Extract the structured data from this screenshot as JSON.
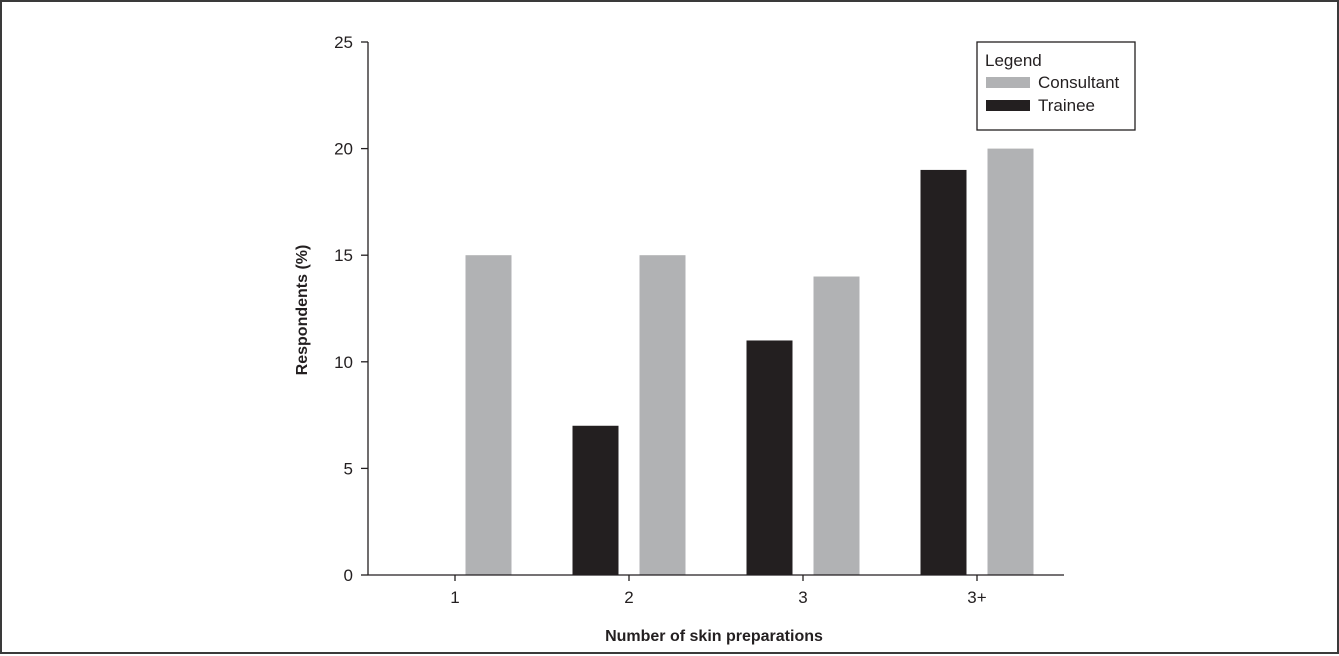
{
  "chart_data": {
    "type": "bar",
    "categories": [
      "1",
      "2",
      "3",
      "3+"
    ],
    "series": [
      {
        "name": "Trainee",
        "color": "#231f20",
        "values": [
          0,
          7,
          11,
          19
        ]
      },
      {
        "name": "Consultant",
        "color": "#b1b2b4",
        "values": [
          15,
          15,
          14,
          20
        ]
      }
    ],
    "xlabel": "Number of skin preparations",
    "ylabel": "Respondents (%)",
    "ylim": [
      0,
      25
    ],
    "yticks": [
      0,
      5,
      10,
      15,
      20,
      25
    ],
    "grid": false,
    "legend": {
      "title": "Legend",
      "placement": "top-right",
      "entries": [
        {
          "label": "Consultant",
          "color": "#b1b2b4"
        },
        {
          "label": "Trainee",
          "color": "#231f20"
        }
      ]
    }
  }
}
